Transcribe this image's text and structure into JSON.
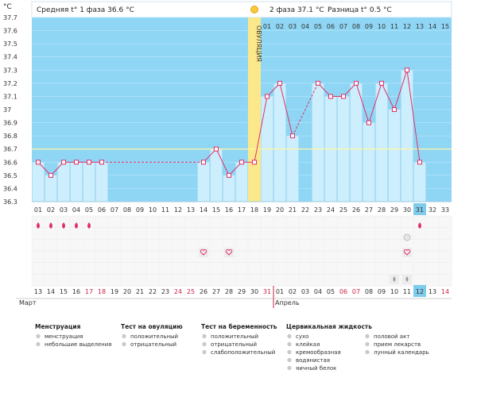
{
  "header": {
    "unit": "°C",
    "phase1": "Средняя t° 1 фаза 36.6 °C",
    "phase2": "2 фаза 37.1 °C",
    "difference": "Разница t° 0.5 °C"
  },
  "ovulation_label": "ОВУЛЯЦИЯ",
  "chart_data": {
    "type": "line",
    "y_ticks": [
      "37.7",
      "37.6",
      "37.5",
      "37.4",
      "37.3",
      "37.2",
      "37.1",
      "37",
      "36.9",
      "36.8",
      "36.7",
      "36.6",
      "36.5",
      "36.4",
      "36.3"
    ],
    "ylim": [
      36.3,
      37.7
    ],
    "coverline": 36.7,
    "ovulation_day": 18,
    "phase2_day_labels": [
      "01",
      "02",
      "03",
      "04",
      "05",
      "06",
      "07",
      "08",
      "09",
      "10",
      "11",
      "12",
      "13",
      "14",
      "15"
    ],
    "cycle_days": [
      "01",
      "02",
      "03",
      "04",
      "05",
      "06",
      "07",
      "08",
      "09",
      "10",
      "11",
      "12",
      "13",
      "14",
      "15",
      "16",
      "17",
      "18",
      "19",
      "20",
      "21",
      "22",
      "23",
      "24",
      "25",
      "26",
      "27",
      "28",
      "29",
      "30",
      "31",
      "32",
      "33"
    ],
    "today_day": "31",
    "temperatures": [
      36.6,
      36.5,
      36.6,
      36.6,
      36.6,
      36.6,
      null,
      null,
      null,
      null,
      null,
      null,
      null,
      36.6,
      36.7,
      36.5,
      36.6,
      36.6,
      37.1,
      37.2,
      36.8,
      null,
      37.2,
      37.1,
      37.1,
      37.2,
      36.9,
      37.2,
      37.0,
      37.3,
      36.6,
      null,
      null
    ],
    "dates": [
      "13",
      "14",
      "15",
      "16",
      "17",
      "18",
      "19",
      "20",
      "21",
      "22",
      "23",
      "24",
      "25",
      "26",
      "27",
      "28",
      "29",
      "30",
      "31",
      "01",
      "02",
      "03",
      "04",
      "05",
      "06",
      "07",
      "08",
      "09",
      "10",
      "11",
      "12",
      "13",
      "14"
    ],
    "red_date_indices": [
      4,
      5,
      11,
      12,
      18,
      24,
      25,
      32
    ],
    "today_date_index": 30,
    "menstruation_days": [
      1,
      2,
      3,
      4,
      5,
      31
    ],
    "heart_days": [
      14,
      16,
      30
    ],
    "pill_days": [
      30
    ],
    "egg_white_days": [
      29,
      30
    ]
  },
  "months": {
    "march": "Март",
    "april": "Апрель"
  },
  "legend": {
    "menstruation": {
      "title": "Менструация",
      "items": [
        "менструация",
        "небольшие выделения"
      ]
    },
    "ovulation_test": {
      "title": "Тест на овуляцию",
      "items": [
        "положительный",
        "отрицательный"
      ]
    },
    "pregnancy_test": {
      "title": "Тест на беременность",
      "items": [
        "положительный",
        "отрицательный",
        "слабоположительный"
      ]
    },
    "cervical_fluid": {
      "title": "Цервикальная жидкость",
      "items": [
        "сухо",
        "клейкая",
        "кремообразная",
        "водянистая",
        "яичный белок"
      ]
    },
    "other": {
      "items": [
        "половой акт",
        "прием лекарств",
        "лунный календарь"
      ]
    }
  },
  "colors": {
    "sky": "#8fd6f5",
    "bar": "#cdeefc",
    "bar_edge": "#a8dbf2",
    "line": "#e0306a",
    "ovulation": "#fbe88a",
    "coverline": "#fff6a0",
    "today": "#7fcbec"
  }
}
